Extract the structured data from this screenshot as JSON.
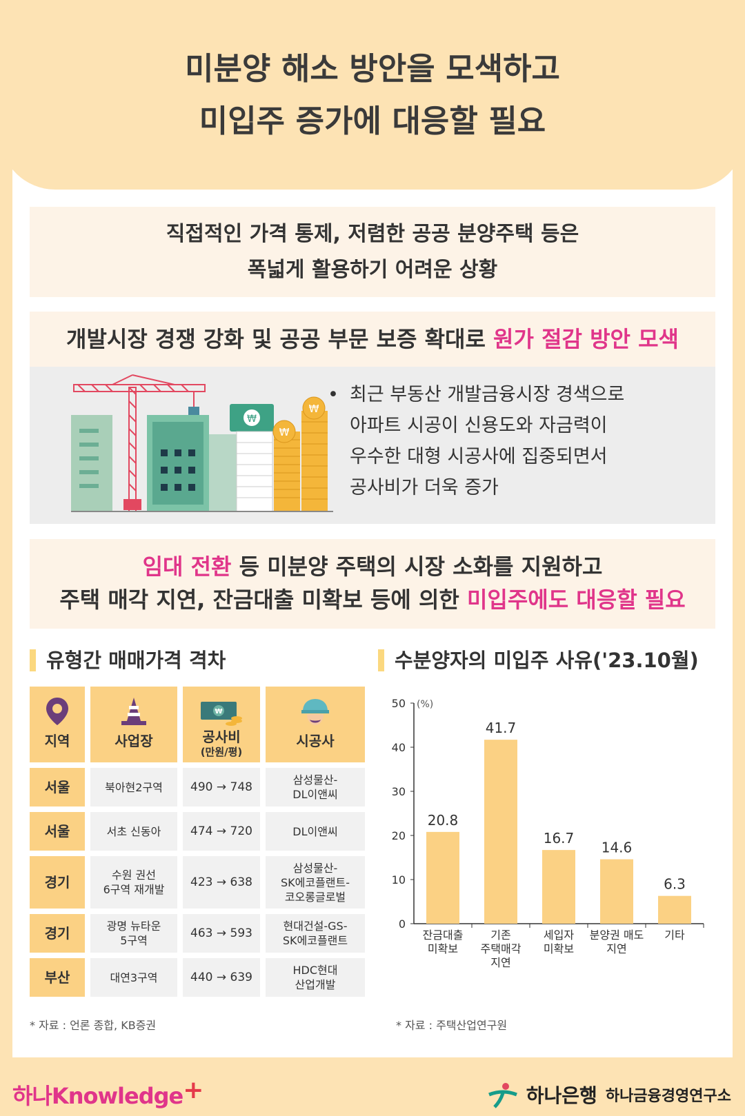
{
  "title": {
    "line1": "미분양 해소 방안을 모색하고",
    "line2": "미입주 증가에 대응할 필요"
  },
  "box1": {
    "line1": "직접적인 가격 통제, 저렴한 공공 분양주택 등은",
    "line2": "폭넓게 활용하기 어려운 상황"
  },
  "box2": {
    "text": "개발시장 경쟁 강화 및 공공 부문 보증 확대로 ",
    "highlight": "원가 절감 방안 모색"
  },
  "bullet": {
    "dot": "•",
    "line1": "최근 부동산 개발금융시장 경색으로",
    "line2": "아파트 시공이 신용도와 자금력이",
    "line3": "우수한 대형 시공사에 집중되면서",
    "line4": "공사비가 더욱 증가"
  },
  "box3": {
    "l1_hl": "임대 전환",
    "l1_text": " 등 미분양 주택의 시장 소화를 지원하고",
    "l2_text": "주택 매각 지연, 잔금대출 미확보 등에 의한 ",
    "l2_hl": "미입주에도 대응할 필요"
  },
  "left_section": {
    "title": "유형간 매매가격 격차",
    "headers": {
      "region": "지역",
      "site": "사업장",
      "cost": "공사비",
      "cost_unit": "(만원/평)",
      "builder": "시공사"
    },
    "rows": [
      {
        "region": "서울",
        "site": "북아현2구역",
        "cost": "490 → 748",
        "builder": "삼성물산-\nDL이앤씨"
      },
      {
        "region": "서울",
        "site": "서초 신동아",
        "cost": "474 → 720",
        "builder": "DL이앤씨"
      },
      {
        "region": "경기",
        "site": "수원 권선\n6구역 재개발",
        "cost": "423 → 638",
        "builder": "삼성물산-\nSK에코플랜트-\n코오롱글로벌"
      },
      {
        "region": "경기",
        "site": "광명 뉴타운\n5구역",
        "cost": "463 → 593",
        "builder": "현대건설-GS-\nSK에코플랜트"
      },
      {
        "region": "부산",
        "site": "대연3구역",
        "cost": "440 → 639",
        "builder": "HDC현대\n산업개발"
      }
    ],
    "note": "* 자료 : 언론 종합, KB증권"
  },
  "right_section": {
    "title": "수분양자의 미입주 사유('23.10월)",
    "note": "* 자료 : 주택산업연구원"
  },
  "chart_data": {
    "type": "bar",
    "title": "수분양자의 미입주 사유('23.10월)",
    "ylabel": "(%)",
    "ylim": [
      0,
      50
    ],
    "yticks": [
      0,
      10,
      20,
      30,
      40,
      50
    ],
    "categories": [
      "잔금대출\n미확보",
      "기존\n주택매각\n지연",
      "세입자\n미확보",
      "분양권 매도\n지연",
      "기타"
    ],
    "values": [
      20.8,
      41.7,
      16.7,
      14.6,
      6.3
    ],
    "bar_color": "#fbd184",
    "grid": false
  },
  "footer": {
    "left_a": "하나",
    "left_b": "Knowledge",
    "left_plus": "+",
    "bank": "하나은행",
    "institute": "하나금융경영연구소"
  },
  "colors": {
    "accent": "#e0358a",
    "peach": "#fde3b4",
    "gold": "#fbd184"
  }
}
